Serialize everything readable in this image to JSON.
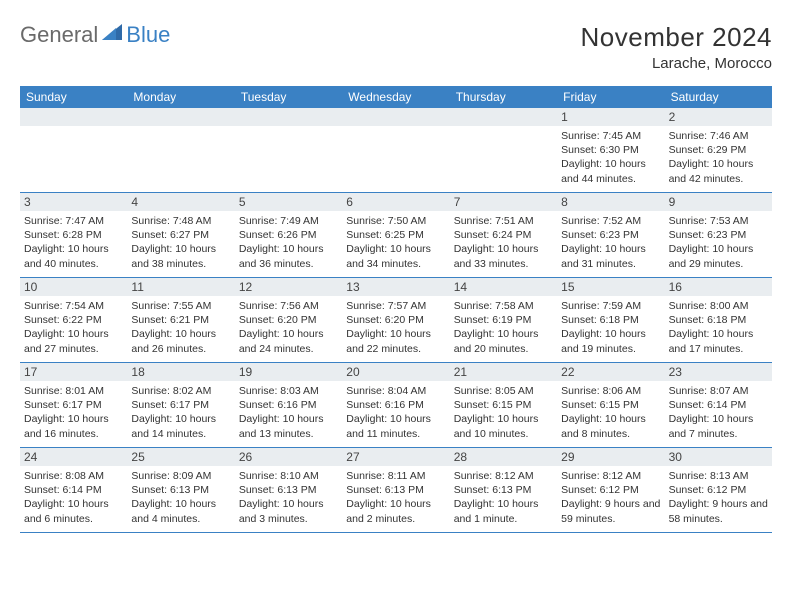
{
  "branding": {
    "word1": "General",
    "word2": "Blue"
  },
  "title": "November 2024",
  "location": "Larache, Morocco",
  "colors": {
    "header_bg": "#3a81c4",
    "header_text": "#ffffff",
    "daynum_bg": "#e9edf0",
    "border": "#3a81c4",
    "text": "#333333",
    "page_bg": "#ffffff"
  },
  "day_labels": [
    "Sunday",
    "Monday",
    "Tuesday",
    "Wednesday",
    "Thursday",
    "Friday",
    "Saturday"
  ],
  "weeks": [
    [
      {
        "n": "",
        "sr": "",
        "ss": "",
        "dl": ""
      },
      {
        "n": "",
        "sr": "",
        "ss": "",
        "dl": ""
      },
      {
        "n": "",
        "sr": "",
        "ss": "",
        "dl": ""
      },
      {
        "n": "",
        "sr": "",
        "ss": "",
        "dl": ""
      },
      {
        "n": "",
        "sr": "",
        "ss": "",
        "dl": ""
      },
      {
        "n": "1",
        "sr": "Sunrise: 7:45 AM",
        "ss": "Sunset: 6:30 PM",
        "dl": "Daylight: 10 hours and 44 minutes."
      },
      {
        "n": "2",
        "sr": "Sunrise: 7:46 AM",
        "ss": "Sunset: 6:29 PM",
        "dl": "Daylight: 10 hours and 42 minutes."
      }
    ],
    [
      {
        "n": "3",
        "sr": "Sunrise: 7:47 AM",
        "ss": "Sunset: 6:28 PM",
        "dl": "Daylight: 10 hours and 40 minutes."
      },
      {
        "n": "4",
        "sr": "Sunrise: 7:48 AM",
        "ss": "Sunset: 6:27 PM",
        "dl": "Daylight: 10 hours and 38 minutes."
      },
      {
        "n": "5",
        "sr": "Sunrise: 7:49 AM",
        "ss": "Sunset: 6:26 PM",
        "dl": "Daylight: 10 hours and 36 minutes."
      },
      {
        "n": "6",
        "sr": "Sunrise: 7:50 AM",
        "ss": "Sunset: 6:25 PM",
        "dl": "Daylight: 10 hours and 34 minutes."
      },
      {
        "n": "7",
        "sr": "Sunrise: 7:51 AM",
        "ss": "Sunset: 6:24 PM",
        "dl": "Daylight: 10 hours and 33 minutes."
      },
      {
        "n": "8",
        "sr": "Sunrise: 7:52 AM",
        "ss": "Sunset: 6:23 PM",
        "dl": "Daylight: 10 hours and 31 minutes."
      },
      {
        "n": "9",
        "sr": "Sunrise: 7:53 AM",
        "ss": "Sunset: 6:23 PM",
        "dl": "Daylight: 10 hours and 29 minutes."
      }
    ],
    [
      {
        "n": "10",
        "sr": "Sunrise: 7:54 AM",
        "ss": "Sunset: 6:22 PM",
        "dl": "Daylight: 10 hours and 27 minutes."
      },
      {
        "n": "11",
        "sr": "Sunrise: 7:55 AM",
        "ss": "Sunset: 6:21 PM",
        "dl": "Daylight: 10 hours and 26 minutes."
      },
      {
        "n": "12",
        "sr": "Sunrise: 7:56 AM",
        "ss": "Sunset: 6:20 PM",
        "dl": "Daylight: 10 hours and 24 minutes."
      },
      {
        "n": "13",
        "sr": "Sunrise: 7:57 AM",
        "ss": "Sunset: 6:20 PM",
        "dl": "Daylight: 10 hours and 22 minutes."
      },
      {
        "n": "14",
        "sr": "Sunrise: 7:58 AM",
        "ss": "Sunset: 6:19 PM",
        "dl": "Daylight: 10 hours and 20 minutes."
      },
      {
        "n": "15",
        "sr": "Sunrise: 7:59 AM",
        "ss": "Sunset: 6:18 PM",
        "dl": "Daylight: 10 hours and 19 minutes."
      },
      {
        "n": "16",
        "sr": "Sunrise: 8:00 AM",
        "ss": "Sunset: 6:18 PM",
        "dl": "Daylight: 10 hours and 17 minutes."
      }
    ],
    [
      {
        "n": "17",
        "sr": "Sunrise: 8:01 AM",
        "ss": "Sunset: 6:17 PM",
        "dl": "Daylight: 10 hours and 16 minutes."
      },
      {
        "n": "18",
        "sr": "Sunrise: 8:02 AM",
        "ss": "Sunset: 6:17 PM",
        "dl": "Daylight: 10 hours and 14 minutes."
      },
      {
        "n": "19",
        "sr": "Sunrise: 8:03 AM",
        "ss": "Sunset: 6:16 PM",
        "dl": "Daylight: 10 hours and 13 minutes."
      },
      {
        "n": "20",
        "sr": "Sunrise: 8:04 AM",
        "ss": "Sunset: 6:16 PM",
        "dl": "Daylight: 10 hours and 11 minutes."
      },
      {
        "n": "21",
        "sr": "Sunrise: 8:05 AM",
        "ss": "Sunset: 6:15 PM",
        "dl": "Daylight: 10 hours and 10 minutes."
      },
      {
        "n": "22",
        "sr": "Sunrise: 8:06 AM",
        "ss": "Sunset: 6:15 PM",
        "dl": "Daylight: 10 hours and 8 minutes."
      },
      {
        "n": "23",
        "sr": "Sunrise: 8:07 AM",
        "ss": "Sunset: 6:14 PM",
        "dl": "Daylight: 10 hours and 7 minutes."
      }
    ],
    [
      {
        "n": "24",
        "sr": "Sunrise: 8:08 AM",
        "ss": "Sunset: 6:14 PM",
        "dl": "Daylight: 10 hours and 6 minutes."
      },
      {
        "n": "25",
        "sr": "Sunrise: 8:09 AM",
        "ss": "Sunset: 6:13 PM",
        "dl": "Daylight: 10 hours and 4 minutes."
      },
      {
        "n": "26",
        "sr": "Sunrise: 8:10 AM",
        "ss": "Sunset: 6:13 PM",
        "dl": "Daylight: 10 hours and 3 minutes."
      },
      {
        "n": "27",
        "sr": "Sunrise: 8:11 AM",
        "ss": "Sunset: 6:13 PM",
        "dl": "Daylight: 10 hours and 2 minutes."
      },
      {
        "n": "28",
        "sr": "Sunrise: 8:12 AM",
        "ss": "Sunset: 6:13 PM",
        "dl": "Daylight: 10 hours and 1 minute."
      },
      {
        "n": "29",
        "sr": "Sunrise: 8:12 AM",
        "ss": "Sunset: 6:12 PM",
        "dl": "Daylight: 9 hours and 59 minutes."
      },
      {
        "n": "30",
        "sr": "Sunrise: 8:13 AM",
        "ss": "Sunset: 6:12 PM",
        "dl": "Daylight: 9 hours and 58 minutes."
      }
    ]
  ]
}
